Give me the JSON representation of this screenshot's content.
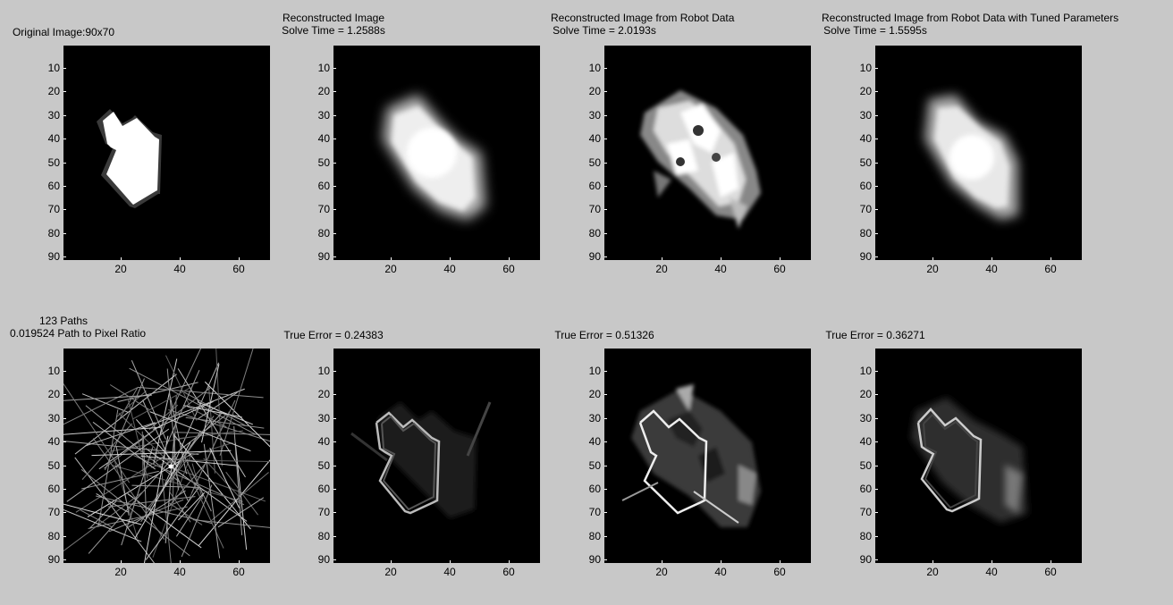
{
  "background_color": "#c8c8c8",
  "axis": {
    "y_ticks": [
      "10",
      "20",
      "30",
      "40",
      "50",
      "60",
      "70",
      "80",
      "90"
    ],
    "x_ticks": [
      "20",
      "40",
      "60"
    ]
  },
  "panels": [
    {
      "title_line1": "Original Image:90x70",
      "title_line2": "",
      "image": "original"
    },
    {
      "title_line1": "Reconstructed Image",
      "title_line2": "Solve Time = 1.2588s",
      "image": "recon-soft"
    },
    {
      "title_line1": "Reconstructed Image from Robot Data",
      "title_line2": "Solve Time = 2.0193s",
      "image": "recon-noisy"
    },
    {
      "title_line1": "Reconstructed Image from Robot Data with Tuned Parameters",
      "title_line2": "Solve Time = 1.5595s",
      "image": "recon-tuned"
    },
    {
      "title_line1": "123 Paths",
      "title_line2": "0.019524 Path to Pixel Ratio",
      "image": "paths"
    },
    {
      "title_line1": "True Error = 0.24383",
      "title_line2": "",
      "image": "error-soft"
    },
    {
      "title_line1": "True Error = 0.51326",
      "title_line2": "",
      "image": "error-noisy"
    },
    {
      "title_line1": "True Error = 0.36271",
      "title_line2": "",
      "image": "error-tuned"
    }
  ]
}
